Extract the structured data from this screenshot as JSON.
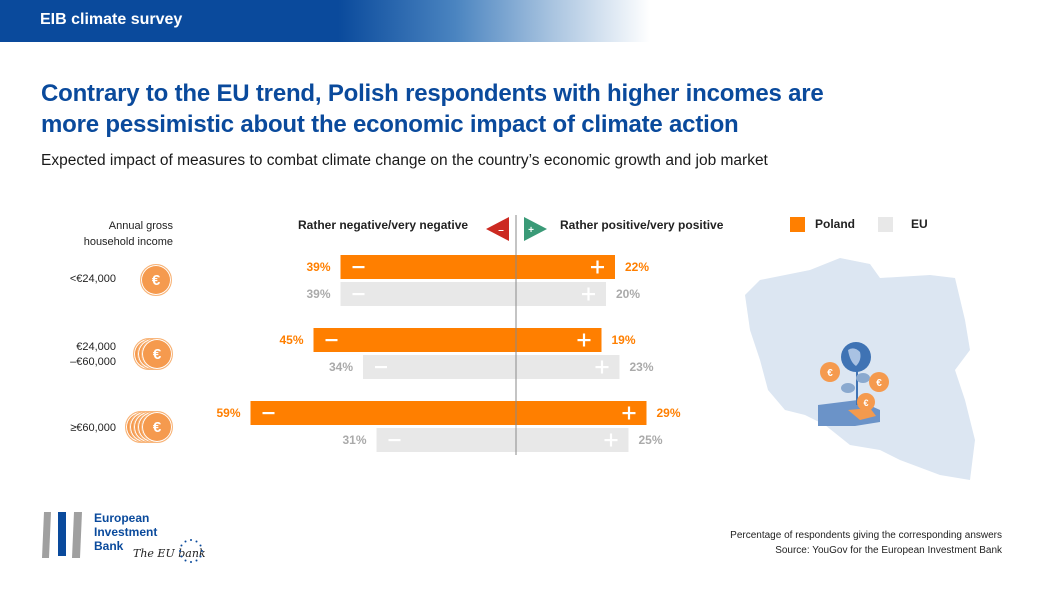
{
  "header": {
    "label": "EIB climate survey"
  },
  "title": "Contrary to the EU trend, Polish respondents with higher incomes are more pessimistic about the economic impact of climate action",
  "subtitle": "Expected impact of measures to combat climate change on the country’s economic growth and job market",
  "colors": {
    "poland": "#ff7f00",
    "eu": "#e8e8e8",
    "eu_label": "#aaaaaa",
    "brand_blue": "#0a4a9c",
    "negative_marker": "#cc2a22",
    "positive_marker": "#3a9a77"
  },
  "income_header": [
    "Annual gross",
    "household income"
  ],
  "axis": {
    "negative_label": "Rather negative/very negative",
    "positive_label": "Rather positive/very positive",
    "negative_icon": "minus-triangle-icon",
    "positive_icon": "plus-triangle-icon"
  },
  "legend": [
    {
      "name": "Poland",
      "color": "#ff7f00"
    },
    {
      "name": "EU",
      "color": "#e8e8e8"
    }
  ],
  "chart_data": {
    "type": "bar",
    "orientation": "horizontal-diverging",
    "title": "Expected impact of measures to combat climate change on the country’s economic growth and job market",
    "categories": [
      "<€24,000",
      "€24,000 –€60,000",
      "≥€60,000"
    ],
    "category_icons": [
      "one-coin-icon",
      "three-coins-icon",
      "five-coins-icon"
    ],
    "series": [
      {
        "name": "Poland",
        "negative": [
          39,
          45,
          59
        ],
        "positive": [
          22,
          19,
          29
        ]
      },
      {
        "name": "EU",
        "negative": [
          39,
          34,
          31
        ],
        "positive": [
          20,
          23,
          25
        ]
      }
    ],
    "negative_label": "Rather negative/very negative",
    "positive_label": "Rather positive/very positive",
    "unit": "%",
    "legend_position": "top-right"
  },
  "income_labels": [
    [
      "<€24,000"
    ],
    [
      "€24,000",
      "–€60,000"
    ],
    [
      "≥€60,000"
    ]
  ],
  "footnote": [
    "Percentage of respondents giving the corresponding answers",
    "Source: YouGov for the European Investment Bank"
  ],
  "logo": {
    "lines": [
      "European",
      "Investment",
      "Bank"
    ],
    "tagline": "The EU bank"
  },
  "coin_symbol": "€",
  "map": {
    "name": "Poland map",
    "illustration": "hand-with-plant-globe-coins-icon"
  }
}
